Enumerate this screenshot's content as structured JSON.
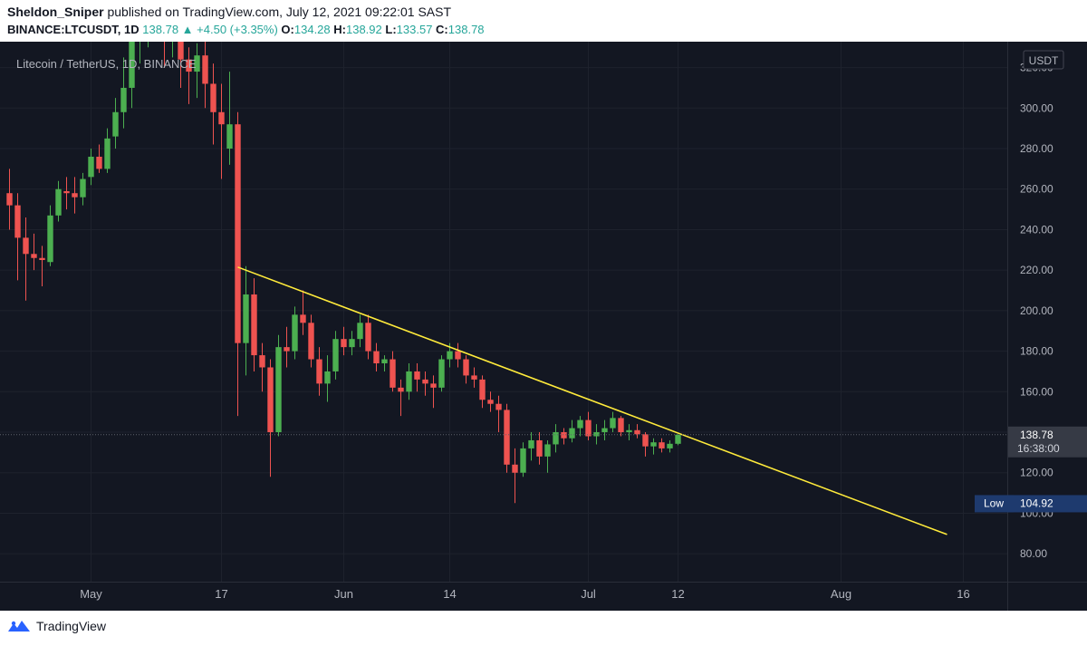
{
  "header": {
    "author": "Sheldon_Sniper",
    "published": " published on TradingView.com, July 12, 2021 09:22:01 SAST",
    "symbol": "BINANCE:LTCUSDT, 1D",
    "last": "138.78",
    "change": "+4.50 (+3.35%)",
    "o_label": "O:",
    "o": "134.28",
    "h_label": "H:",
    "h": "138.92",
    "l_label": "L:",
    "l": "133.57",
    "c_label": "C:",
    "c": "138.78"
  },
  "chart_title": "Litecoin / TetherUS, 1D, BINANCE",
  "currency": "USDT",
  "footer": {
    "brand": "TradingView"
  },
  "colors": {
    "background": "#131722",
    "grid": "#1e222d",
    "up": "#26a69a",
    "up_candle": "#4caf50",
    "down": "#ef5350",
    "trendline": "#ffeb3b",
    "axis_text": "#b2b5be",
    "price_label": "#363a45",
    "low_label": "#1e3a6e"
  },
  "chart_data": {
    "type": "candlestick",
    "title": "Litecoin / TetherUS, 1D, BINANCE",
    "ylim": [
      68,
      331
    ],
    "y_ticks": [
      80,
      100,
      120,
      140,
      160,
      180,
      200,
      220,
      240,
      260,
      280,
      300,
      320
    ],
    "y_tick_labels": [
      "80.00",
      "100.00",
      "120.00",
      "140.00",
      "160.00",
      "180.00",
      "200.00",
      "220.00",
      "240.00",
      "260.00",
      "280.00",
      "300.00",
      "320.00"
    ],
    "x_start": "2021-04-21",
    "x_end": "2021-08-21",
    "x_ticks": [
      {
        "date": "2021-05-01",
        "label": "May"
      },
      {
        "date": "2021-05-17",
        "label": "17"
      },
      {
        "date": "2021-06-01",
        "label": "Jun"
      },
      {
        "date": "2021-06-14",
        "label": "14"
      },
      {
        "date": "2021-07-01",
        "label": "Jul"
      },
      {
        "date": "2021-07-12",
        "label": "12"
      },
      {
        "date": "2021-08-01",
        "label": "Aug"
      },
      {
        "date": "2021-08-16",
        "label": "16"
      }
    ],
    "last_price": 138.78,
    "last_price_label": "138.78",
    "countdown_label": "16:38:00",
    "low_label": "Low",
    "low_value": 104.92,
    "low_value_label": "104.92",
    "trendline": {
      "start": {
        "date": "2021-05-19",
        "price": 221.5
      },
      "end": {
        "date": "2021-08-14",
        "price": 89.5
      }
    },
    "ohlc": [
      {
        "date": "2021-04-21",
        "o": 258,
        "h": 270,
        "l": 240,
        "c": 252
      },
      {
        "date": "2021-04-22",
        "o": 252,
        "h": 258,
        "l": 215,
        "c": 236
      },
      {
        "date": "2021-04-23",
        "o": 236,
        "h": 246,
        "l": 205,
        "c": 228
      },
      {
        "date": "2021-04-24",
        "o": 228,
        "h": 238,
        "l": 220,
        "c": 226
      },
      {
        "date": "2021-04-25",
        "o": 226,
        "h": 232,
        "l": 212,
        "c": 225
      },
      {
        "date": "2021-04-26",
        "o": 224,
        "h": 252,
        "l": 222,
        "c": 247
      },
      {
        "date": "2021-04-27",
        "o": 247,
        "h": 264,
        "l": 244,
        "c": 260
      },
      {
        "date": "2021-04-28",
        "o": 259,
        "h": 266,
        "l": 250,
        "c": 258
      },
      {
        "date": "2021-04-29",
        "o": 258,
        "h": 266,
        "l": 248,
        "c": 256
      },
      {
        "date": "2021-04-30",
        "o": 256,
        "h": 268,
        "l": 252,
        "c": 265
      },
      {
        "date": "2021-05-01",
        "o": 266,
        "h": 280,
        "l": 262,
        "c": 276
      },
      {
        "date": "2021-05-02",
        "o": 276,
        "h": 282,
        "l": 268,
        "c": 270
      },
      {
        "date": "2021-05-03",
        "o": 270,
        "h": 290,
        "l": 268,
        "c": 285
      },
      {
        "date": "2021-05-04",
        "o": 286,
        "h": 305,
        "l": 280,
        "c": 298
      },
      {
        "date": "2021-05-05",
        "o": 298,
        "h": 325,
        "l": 290,
        "c": 310
      },
      {
        "date": "2021-05-06",
        "o": 310,
        "h": 340,
        "l": 300,
        "c": 335
      },
      {
        "date": "2021-05-07",
        "o": 335,
        "h": 348,
        "l": 322,
        "c": 340
      },
      {
        "date": "2021-05-08",
        "o": 340,
        "h": 352,
        "l": 330,
        "c": 345
      },
      {
        "date": "2021-05-09",
        "o": 345,
        "h": 360,
        "l": 335,
        "c": 350
      },
      {
        "date": "2021-05-10",
        "o": 350,
        "h": 358,
        "l": 320,
        "c": 338
      },
      {
        "date": "2021-05-11",
        "o": 338,
        "h": 355,
        "l": 325,
        "c": 345
      },
      {
        "date": "2021-05-12",
        "o": 345,
        "h": 352,
        "l": 310,
        "c": 324
      },
      {
        "date": "2021-05-13",
        "o": 324,
        "h": 330,
        "l": 302,
        "c": 318
      },
      {
        "date": "2021-05-14",
        "o": 318,
        "h": 332,
        "l": 305,
        "c": 326
      },
      {
        "date": "2021-05-15",
        "o": 326,
        "h": 334,
        "l": 300,
        "c": 312
      },
      {
        "date": "2021-05-16",
        "o": 312,
        "h": 322,
        "l": 282,
        "c": 298
      },
      {
        "date": "2021-05-17",
        "o": 298,
        "h": 312,
        "l": 265,
        "c": 292
      },
      {
        "date": "2021-05-18",
        "o": 280,
        "h": 318,
        "l": 272,
        "c": 292
      },
      {
        "date": "2021-05-19",
        "o": 292,
        "h": 298,
        "l": 148,
        "c": 184
      },
      {
        "date": "2021-05-20",
        "o": 184,
        "h": 222,
        "l": 168,
        "c": 208
      },
      {
        "date": "2021-05-21",
        "o": 208,
        "h": 216,
        "l": 170,
        "c": 178
      },
      {
        "date": "2021-05-22",
        "o": 178,
        "h": 184,
        "l": 160,
        "c": 172
      },
      {
        "date": "2021-05-23",
        "o": 172,
        "h": 176,
        "l": 118,
        "c": 140
      },
      {
        "date": "2021-05-24",
        "o": 140,
        "h": 188,
        "l": 138,
        "c": 182
      },
      {
        "date": "2021-05-25",
        "o": 182,
        "h": 192,
        "l": 172,
        "c": 180
      },
      {
        "date": "2021-05-26",
        "o": 180,
        "h": 202,
        "l": 176,
        "c": 198
      },
      {
        "date": "2021-05-27",
        "o": 198,
        "h": 210,
        "l": 188,
        "c": 194
      },
      {
        "date": "2021-05-28",
        "o": 194,
        "h": 198,
        "l": 172,
        "c": 176
      },
      {
        "date": "2021-05-29",
        "o": 176,
        "h": 182,
        "l": 158,
        "c": 164
      },
      {
        "date": "2021-05-30",
        "o": 164,
        "h": 178,
        "l": 155,
        "c": 170
      },
      {
        "date": "2021-05-31",
        "o": 170,
        "h": 190,
        "l": 166,
        "c": 186
      },
      {
        "date": "2021-06-01",
        "o": 186,
        "h": 192,
        "l": 178,
        "c": 182
      },
      {
        "date": "2021-06-02",
        "o": 182,
        "h": 190,
        "l": 178,
        "c": 186
      },
      {
        "date": "2021-06-03",
        "o": 186,
        "h": 198,
        "l": 182,
        "c": 194
      },
      {
        "date": "2021-06-04",
        "o": 194,
        "h": 198,
        "l": 176,
        "c": 180
      },
      {
        "date": "2021-06-05",
        "o": 180,
        "h": 184,
        "l": 170,
        "c": 174
      },
      {
        "date": "2021-06-06",
        "o": 174,
        "h": 178,
        "l": 170,
        "c": 176
      },
      {
        "date": "2021-06-07",
        "o": 176,
        "h": 180,
        "l": 160,
        "c": 162
      },
      {
        "date": "2021-06-08",
        "o": 162,
        "h": 166,
        "l": 148,
        "c": 160
      },
      {
        "date": "2021-06-09",
        "o": 160,
        "h": 174,
        "l": 156,
        "c": 170
      },
      {
        "date": "2021-06-10",
        "o": 170,
        "h": 174,
        "l": 160,
        "c": 166
      },
      {
        "date": "2021-06-11",
        "o": 166,
        "h": 170,
        "l": 158,
        "c": 164
      },
      {
        "date": "2021-06-12",
        "o": 164,
        "h": 168,
        "l": 152,
        "c": 162
      },
      {
        "date": "2021-06-13",
        "o": 162,
        "h": 178,
        "l": 160,
        "c": 176
      },
      {
        "date": "2021-06-14",
        "o": 176,
        "h": 184,
        "l": 172,
        "c": 180
      },
      {
        "date": "2021-06-15",
        "o": 180,
        "h": 184,
        "l": 172,
        "c": 176
      },
      {
        "date": "2021-06-16",
        "o": 176,
        "h": 178,
        "l": 164,
        "c": 168
      },
      {
        "date": "2021-06-17",
        "o": 168,
        "h": 172,
        "l": 162,
        "c": 166
      },
      {
        "date": "2021-06-18",
        "o": 166,
        "h": 168,
        "l": 152,
        "c": 156
      },
      {
        "date": "2021-06-19",
        "o": 156,
        "h": 160,
        "l": 150,
        "c": 154
      },
      {
        "date": "2021-06-20",
        "o": 154,
        "h": 158,
        "l": 140,
        "c": 151
      },
      {
        "date": "2021-06-21",
        "o": 151,
        "h": 154,
        "l": 120,
        "c": 124
      },
      {
        "date": "2021-06-22",
        "o": 124,
        "h": 132,
        "l": 105,
        "c": 120
      },
      {
        "date": "2021-06-23",
        "o": 120,
        "h": 135,
        "l": 118,
        "c": 132
      },
      {
        "date": "2021-06-24",
        "o": 132,
        "h": 140,
        "l": 126,
        "c": 136
      },
      {
        "date": "2021-06-25",
        "o": 136,
        "h": 140,
        "l": 124,
        "c": 128
      },
      {
        "date": "2021-06-26",
        "o": 128,
        "h": 136,
        "l": 120,
        "c": 134
      },
      {
        "date": "2021-06-27",
        "o": 134,
        "h": 144,
        "l": 130,
        "c": 140
      },
      {
        "date": "2021-06-28",
        "o": 140,
        "h": 142,
        "l": 134,
        "c": 137
      },
      {
        "date": "2021-06-29",
        "o": 137,
        "h": 146,
        "l": 135,
        "c": 142
      },
      {
        "date": "2021-06-30",
        "o": 142,
        "h": 148,
        "l": 138,
        "c": 146
      },
      {
        "date": "2021-07-01",
        "o": 146,
        "h": 150,
        "l": 136,
        "c": 138
      },
      {
        "date": "2021-07-02",
        "o": 138,
        "h": 144,
        "l": 134,
        "c": 140
      },
      {
        "date": "2021-07-03",
        "o": 140,
        "h": 146,
        "l": 136,
        "c": 142
      },
      {
        "date": "2021-07-04",
        "o": 142,
        "h": 150,
        "l": 140,
        "c": 147
      },
      {
        "date": "2021-07-05",
        "o": 147,
        "h": 148,
        "l": 138,
        "c": 140
      },
      {
        "date": "2021-07-06",
        "o": 140,
        "h": 144,
        "l": 136,
        "c": 141
      },
      {
        "date": "2021-07-07",
        "o": 141,
        "h": 144,
        "l": 137,
        "c": 139
      },
      {
        "date": "2021-07-08",
        "o": 139,
        "h": 140,
        "l": 128,
        "c": 133
      },
      {
        "date": "2021-07-09",
        "o": 133,
        "h": 137,
        "l": 129,
        "c": 135
      },
      {
        "date": "2021-07-10",
        "o": 135,
        "h": 137,
        "l": 130,
        "c": 132
      },
      {
        "date": "2021-07-11",
        "o": 132,
        "h": 136,
        "l": 130,
        "c": 134.28
      },
      {
        "date": "2021-07-12",
        "o": 134.28,
        "h": 138.92,
        "l": 133.57,
        "c": 138.78
      }
    ]
  }
}
